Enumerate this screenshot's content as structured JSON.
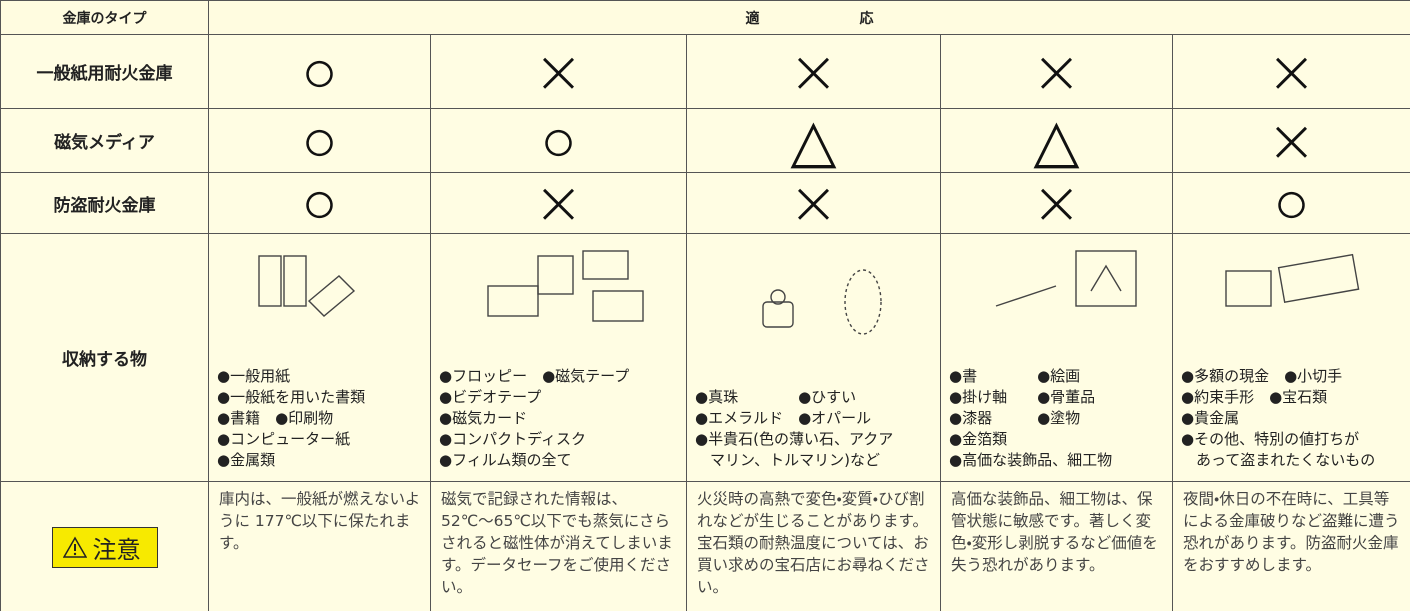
{
  "header": {
    "type_label": "金庫のタイプ",
    "suitability_label": "適応"
  },
  "rows": [
    {
      "label": "一般紙用耐火金庫",
      "marks": [
        "○",
        "×",
        "×",
        "×",
        "×"
      ]
    },
    {
      "label": "磁気メディア",
      "marks": [
        "○",
        "○",
        "△",
        "△",
        "×"
      ]
    },
    {
      "label": "防盗耐火金庫",
      "marks": [
        "○",
        "×",
        "×",
        "×",
        "○"
      ]
    }
  ],
  "storage": {
    "label": "収納する物",
    "items": [
      [
        "●一般用紙",
        "●一般紙を用いた書類",
        "●書籍　●印刷物",
        "●コンピューター紙",
        "●金属類"
      ],
      [
        "●フロッピー　●磁気テープ",
        "●ビデオテープ",
        "●磁気カード",
        "●コンパクトディスク",
        "●フィルム類の全て"
      ],
      [
        "●真珠　　　　●ひすい",
        "●エメラルド　●オパール",
        "●半貴石(色の薄い石、アクア",
        "　マリン、トルマリン)など"
      ],
      [
        "●書　　　　●絵画",
        "●掛け軸　　●骨董品",
        "●漆器　　　●塗物",
        "●金箔類",
        "●高価な装飾品、細工物"
      ],
      [
        "●多額の現金　●小切手",
        "●約束手形　●宝石類",
        "●貴金属",
        "●その他、特別の値打ちが",
        "　あって盗まれたくないもの"
      ]
    ]
  },
  "caution": {
    "label": "注意",
    "notes": [
      "庫内は、一般紙が燃えないように 177℃以下に保たれます。",
      "磁気で記録された情報は、52℃〜65℃以下でも蒸気にさらされると磁性体が消えてしまいます。データセーフをご使用ください。",
      "火災時の高熱で変色・変質・ひび割れなどが生じることがあります。宝石類の耐熱温度については、お買い求めの宝石店にお尋ねください。",
      "高価な装飾品、細工物は、保管状態に敏感です。著しく変色・変形し剥脱するなど価値を失う恐れがあります。",
      "夜間・休日の不在時に、工具等による金庫破りなど盗難に遭う恐れがあります。防盗耐火金庫をおすすめします。"
    ]
  }
}
